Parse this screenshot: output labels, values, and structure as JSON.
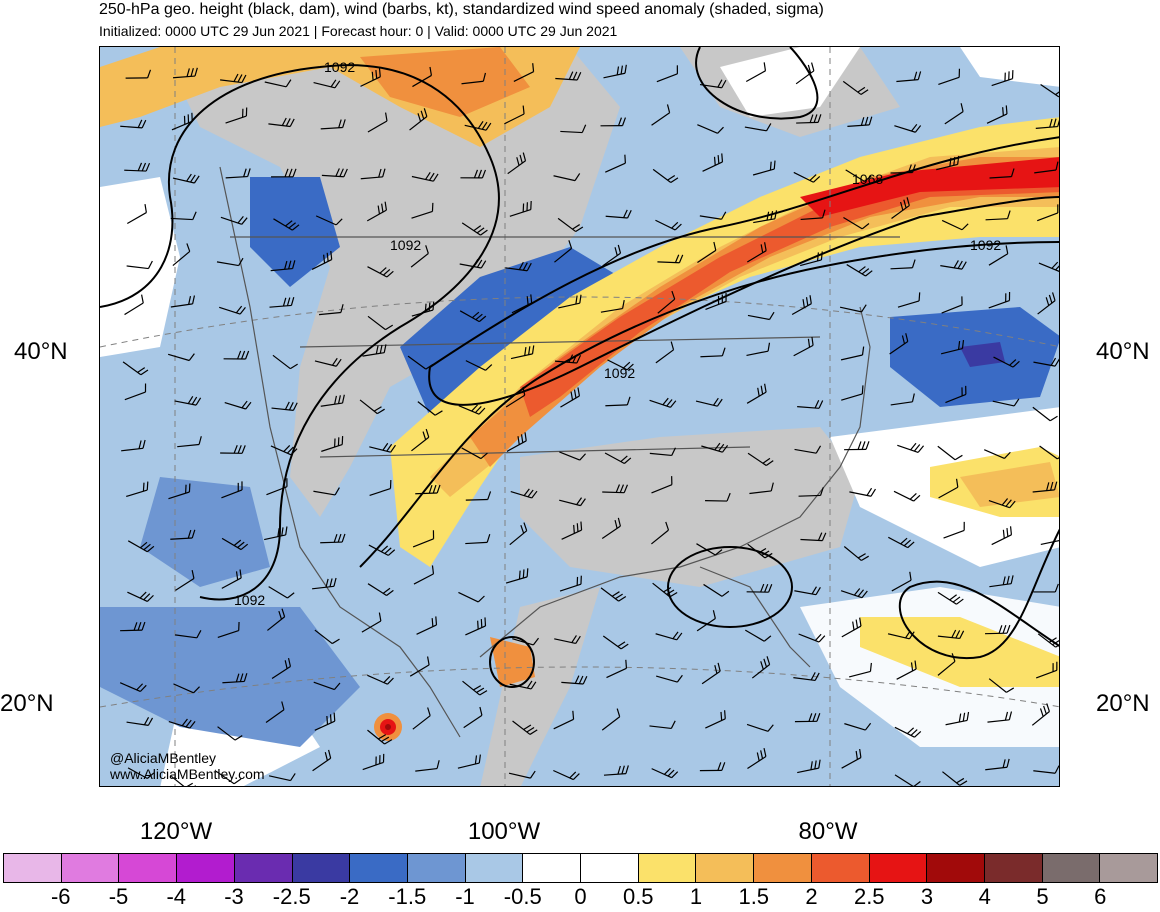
{
  "title": "250-hPa geo. height (black, dam), wind (barbs, kt), standardized wind speed anomaly (shaded, sigma)",
  "subtitle": "Initialized: 0000 UTC 29 Jun 2021 | Forecast hour: 0 | Valid: 0000 UTC 29 Jun 2021",
  "axes": {
    "lat_labels": [
      "40°N",
      "20°N"
    ],
    "lon_labels": [
      "120°W",
      "100°W",
      "80°W"
    ]
  },
  "contour_labels": [
    "1092",
    "1092",
    "1092",
    "1092",
    "1068",
    "1092"
  ],
  "credit": {
    "handle": "@AliciaMBentley",
    "url": "www.AliciaMBentley.com"
  },
  "colorbar": {
    "colors": [
      "#e8b7e8",
      "#e07be0",
      "#d648d6",
      "#b21ccf",
      "#6a2cb0",
      "#3a3aa2",
      "#3a6bc5",
      "#6e96d2",
      "#a9c8e6",
      "#ffffff",
      "#ffffff",
      "#fbe16a",
      "#f4be59",
      "#f0903e",
      "#ec5a2e",
      "#e61414",
      "#a10a0a",
      "#7a2b2b",
      "#7a6c6c",
      "#a89a9a"
    ],
    "ticks": [
      "-6",
      "-5",
      "-4",
      "-3",
      "-2.5",
      "-2",
      "-1.5",
      "-1",
      "-0.5",
      "0",
      "0.5",
      "1",
      "1.5",
      "2",
      "2.5",
      "3",
      "4",
      "5",
      "6"
    ]
  }
}
